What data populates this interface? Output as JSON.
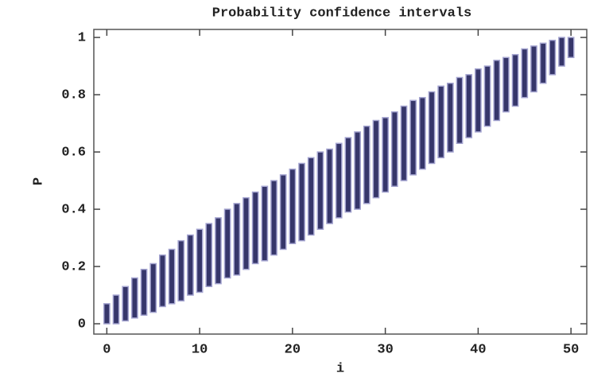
{
  "chart_data": {
    "type": "range-bar",
    "title": "Probability confidence intervals",
    "x_label": "i",
    "y_label": "P",
    "x": [
      0,
      1,
      2,
      3,
      4,
      5,
      6,
      7,
      8,
      9,
      10,
      11,
      12,
      13,
      14,
      15,
      16,
      17,
      18,
      19,
      20,
      21,
      22,
      23,
      24,
      25,
      26,
      27,
      28,
      29,
      30,
      31,
      32,
      33,
      34,
      35,
      36,
      37,
      38,
      39,
      40,
      41,
      42,
      43,
      44,
      45,
      46,
      47,
      48,
      49,
      50
    ],
    "low": [
      0,
      0,
      0.01,
      0.02,
      0.03,
      0.04,
      0.06,
      0.07,
      0.08,
      0.1,
      0.11,
      0.13,
      0.14,
      0.16,
      0.17,
      0.19,
      0.21,
      0.22,
      0.24,
      0.26,
      0.28,
      0.29,
      0.31,
      0.33,
      0.35,
      0.37,
      0.39,
      0.4,
      0.42,
      0.44,
      0.46,
      0.48,
      0.5,
      0.52,
      0.54,
      0.56,
      0.58,
      0.6,
      0.63,
      0.65,
      0.67,
      0.69,
      0.71,
      0.74,
      0.76,
      0.79,
      0.81,
      0.84,
      0.87,
      0.9,
      0.93
    ],
    "high": [
      0.07,
      0.1,
      0.13,
      0.16,
      0.19,
      0.21,
      0.24,
      0.26,
      0.29,
      0.31,
      0.33,
      0.35,
      0.37,
      0.4,
      0.42,
      0.44,
      0.46,
      0.48,
      0.5,
      0.52,
      0.54,
      0.56,
      0.58,
      0.6,
      0.61,
      0.63,
      0.65,
      0.67,
      0.69,
      0.71,
      0.72,
      0.74,
      0.76,
      0.78,
      0.79,
      0.81,
      0.83,
      0.84,
      0.86,
      0.87,
      0.89,
      0.9,
      0.92,
      0.93,
      0.94,
      0.96,
      0.97,
      0.98,
      0.99,
      1,
      1
    ],
    "color": "#36366a",
    "edge_color": "#a4a4d0",
    "xlim": [
      -1.4,
      51.7
    ],
    "ylim": [
      -0.036,
      1.028
    ],
    "xticks": [
      0,
      10,
      20,
      30,
      40,
      50
    ],
    "yticks": [
      0,
      0.2,
      0.4,
      0.6,
      0.8,
      1
    ]
  }
}
